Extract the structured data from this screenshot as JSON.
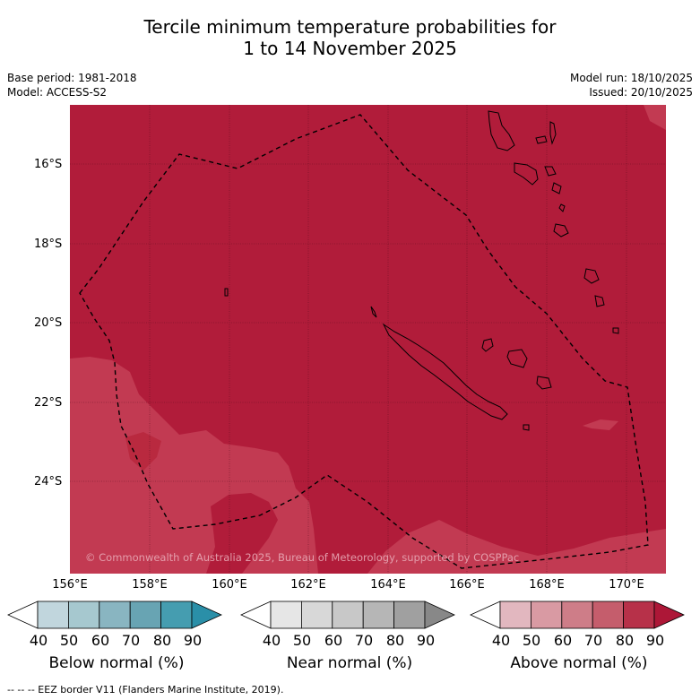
{
  "title_line1": "Tercile minimum temperature probabilities for",
  "title_line2": "1 to 14 November 2025",
  "meta": {
    "base_period": "Base period: 1981-2018",
    "model": "Model: ACCESS-S2",
    "model_run": "Model run: 18/10/2025",
    "issued": "Issued: 20/10/2025"
  },
  "map": {
    "lat_labels": [
      "16°S",
      "18°S",
      "20°S",
      "22°S",
      "24°S"
    ],
    "lon_labels": [
      "156°E",
      "158°E",
      "160°E",
      "162°E",
      "164°E",
      "166°E",
      "168°E",
      "170°E"
    ],
    "copyright": "© Commonwealth of Australia 2025, Bureau of Meteorology, supported by COSPPac",
    "colors": {
      "above_80_90": "#b11c3a",
      "above_70_80": "#c23a52",
      "border": "#000000"
    }
  },
  "colorbars": [
    {
      "label": "Below normal (%)",
      "ticks": [
        "40",
        "50",
        "60",
        "70",
        "80",
        "90"
      ],
      "colors": [
        "#c1d6dd",
        "#a6c8cf",
        "#89b5c1",
        "#68a4b3",
        "#459db0",
        "#2a8fa8"
      ]
    },
    {
      "label": "Near normal (%)",
      "ticks": [
        "40",
        "50",
        "60",
        "70",
        "80",
        "90"
      ],
      "colors": [
        "#e6e6e6",
        "#d8d8d8",
        "#c8c8c8",
        "#b6b6b6",
        "#a0a0a0",
        "#888888"
      ]
    },
    {
      "label": "Above normal (%)",
      "ticks": [
        "40",
        "50",
        "60",
        "70",
        "80",
        "90"
      ],
      "colors": [
        "#e2b7bf",
        "#d99aa3",
        "#ce7d88",
        "#c55d6c",
        "#b73149",
        "#ad1737"
      ]
    }
  ],
  "footer": "--  --  -- EEZ border V11 (Flanders Marine Institute, 2019)."
}
